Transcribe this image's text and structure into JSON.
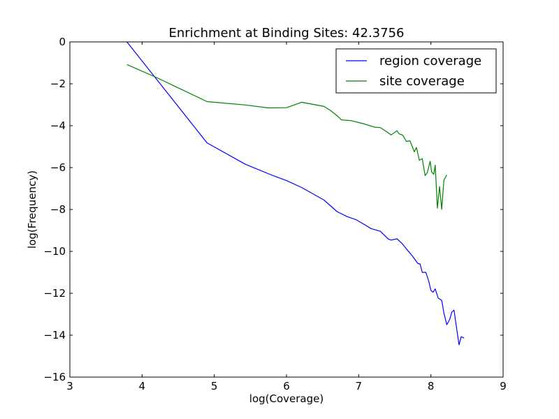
{
  "chart_data": {
    "type": "line",
    "title": "Enrichment at Binding Sites: 42.3756",
    "xlabel": "log(Coverage)",
    "ylabel": "log(Frequency)",
    "xlim": [
      3,
      9
    ],
    "ylim": [
      -16,
      0
    ],
    "xticks": [
      3,
      4,
      5,
      6,
      7,
      8,
      9
    ],
    "yticks": [
      0,
      -2,
      -4,
      -6,
      -8,
      -10,
      -12,
      -14,
      -16
    ],
    "xtick_labels": [
      "3",
      "4",
      "5",
      "6",
      "7",
      "8",
      "9"
    ],
    "ytick_labels": [
      "0",
      "−2",
      "−4",
      "−6",
      "−8",
      "−10",
      "−12",
      "−14",
      "−16"
    ],
    "grid": false,
    "legend_position": "top-right",
    "series": [
      {
        "name": "region coverage",
        "color": "#0000ff",
        "points": [
          [
            3.79,
            0.0
          ],
          [
            4.9,
            -4.82
          ],
          [
            5.43,
            -5.84
          ],
          [
            5.79,
            -6.35
          ],
          [
            6.0,
            -6.62
          ],
          [
            6.21,
            -6.95
          ],
          [
            6.52,
            -7.55
          ],
          [
            6.7,
            -8.1
          ],
          [
            6.84,
            -8.34
          ],
          [
            6.96,
            -8.48
          ],
          [
            7.06,
            -8.68
          ],
          [
            7.17,
            -8.91
          ],
          [
            7.3,
            -9.04
          ],
          [
            7.41,
            -9.41
          ],
          [
            7.45,
            -9.46
          ],
          [
            7.53,
            -9.4
          ],
          [
            7.6,
            -9.62
          ],
          [
            7.68,
            -9.96
          ],
          [
            7.74,
            -10.2
          ],
          [
            7.82,
            -10.58
          ],
          [
            7.85,
            -10.6
          ],
          [
            7.88,
            -11.0
          ],
          [
            7.93,
            -11.0
          ],
          [
            7.97,
            -11.42
          ],
          [
            8.0,
            -11.86
          ],
          [
            8.03,
            -11.95
          ],
          [
            8.06,
            -11.79
          ],
          [
            8.1,
            -12.22
          ],
          [
            8.15,
            -12.34
          ],
          [
            8.18,
            -12.94
          ],
          [
            8.22,
            -13.5
          ],
          [
            8.26,
            -13.25
          ],
          [
            8.29,
            -12.9
          ],
          [
            8.32,
            -12.8
          ],
          [
            8.36,
            -13.76
          ],
          [
            8.39,
            -14.46
          ],
          [
            8.42,
            -14.07
          ],
          [
            8.46,
            -14.14
          ]
        ]
      },
      {
        "name": "site coverage",
        "color": "#008000",
        "points": [
          [
            3.79,
            -1.08
          ],
          [
            4.2,
            -1.7
          ],
          [
            4.9,
            -2.85
          ],
          [
            5.43,
            -3.01
          ],
          [
            5.75,
            -3.15
          ],
          [
            6.0,
            -3.14
          ],
          [
            6.21,
            -2.88
          ],
          [
            6.52,
            -3.08
          ],
          [
            6.62,
            -3.3
          ],
          [
            6.7,
            -3.52
          ],
          [
            6.76,
            -3.72
          ],
          [
            6.9,
            -3.76
          ],
          [
            7.06,
            -3.9
          ],
          [
            7.22,
            -4.07
          ],
          [
            7.3,
            -4.09
          ],
          [
            7.38,
            -4.27
          ],
          [
            7.45,
            -4.44
          ],
          [
            7.53,
            -4.24
          ],
          [
            7.56,
            -4.39
          ],
          [
            7.61,
            -4.45
          ],
          [
            7.66,
            -4.75
          ],
          [
            7.71,
            -4.72
          ],
          [
            7.77,
            -5.25
          ],
          [
            7.8,
            -5.04
          ],
          [
            7.84,
            -5.65
          ],
          [
            7.88,
            -5.57
          ],
          [
            7.92,
            -6.38
          ],
          [
            7.95,
            -6.24
          ],
          [
            7.99,
            -5.7
          ],
          [
            8.01,
            -6.21
          ],
          [
            8.04,
            -6.32
          ],
          [
            8.06,
            -5.88
          ],
          [
            8.09,
            -7.94
          ],
          [
            8.12,
            -6.9
          ],
          [
            8.15,
            -7.99
          ],
          [
            8.18,
            -6.6
          ],
          [
            8.22,
            -6.35
          ]
        ]
      }
    ]
  }
}
